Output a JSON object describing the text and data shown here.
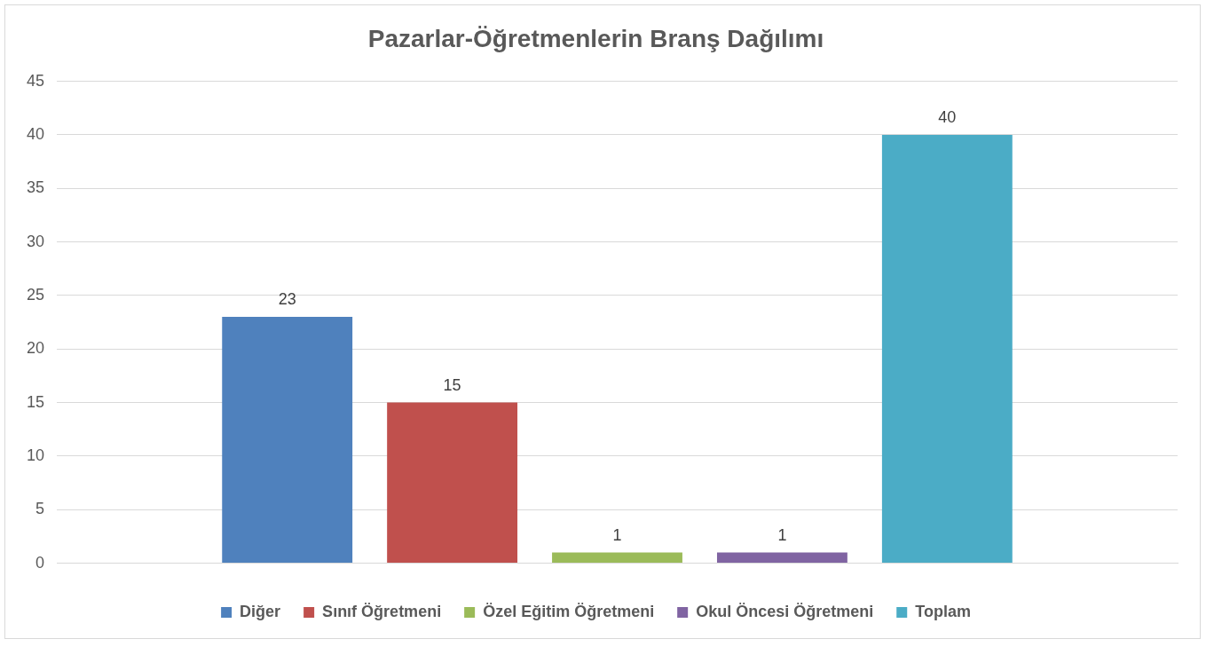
{
  "chart_data": {
    "type": "bar",
    "title": "Pazarlar-Öğretmenlerin Branş Dağılımı",
    "categories": [
      null
    ],
    "series": [
      {
        "name": "Diğer",
        "color": "#4f81bd",
        "values": [
          23
        ]
      },
      {
        "name": "Sınıf Öğretmeni",
        "color": "#c0504d",
        "values": [
          15
        ]
      },
      {
        "name": "Özel Eğitim Öğretmeni",
        "color": "#9bbb59",
        "values": [
          1
        ]
      },
      {
        "name": "Okul Öncesi Öğretmeni",
        "color": "#8064a2",
        "values": [
          1
        ]
      },
      {
        "name": "Toplam",
        "color": "#4bacc6",
        "values": [
          40
        ]
      }
    ],
    "ylim": [
      0,
      45
    ],
    "yticks": [
      0,
      5,
      10,
      15,
      20,
      25,
      30,
      35,
      40,
      45
    ],
    "grid": "y",
    "legend": "bottom",
    "data_labels": true
  }
}
